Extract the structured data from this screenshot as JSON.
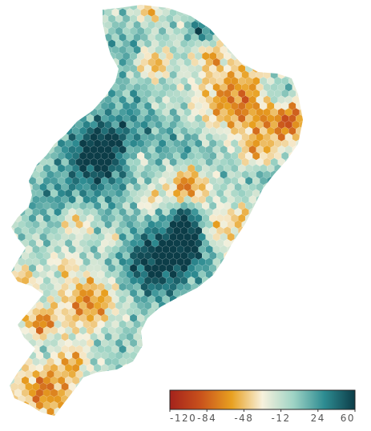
{
  "map": {
    "type": "hexbin-choropleth",
    "legend": {
      "placement": "bottom-right",
      "ticks": [
        "-120",
        "-84",
        "-48",
        "-12",
        "24",
        "60"
      ],
      "min": -120,
      "max": 60,
      "colors": [
        "#a4221c",
        "#c9521c",
        "#e8a020",
        "#f7f1dd",
        "#9fd4c5",
        "#2e8c92",
        "#0c3d48"
      ]
    }
  }
}
